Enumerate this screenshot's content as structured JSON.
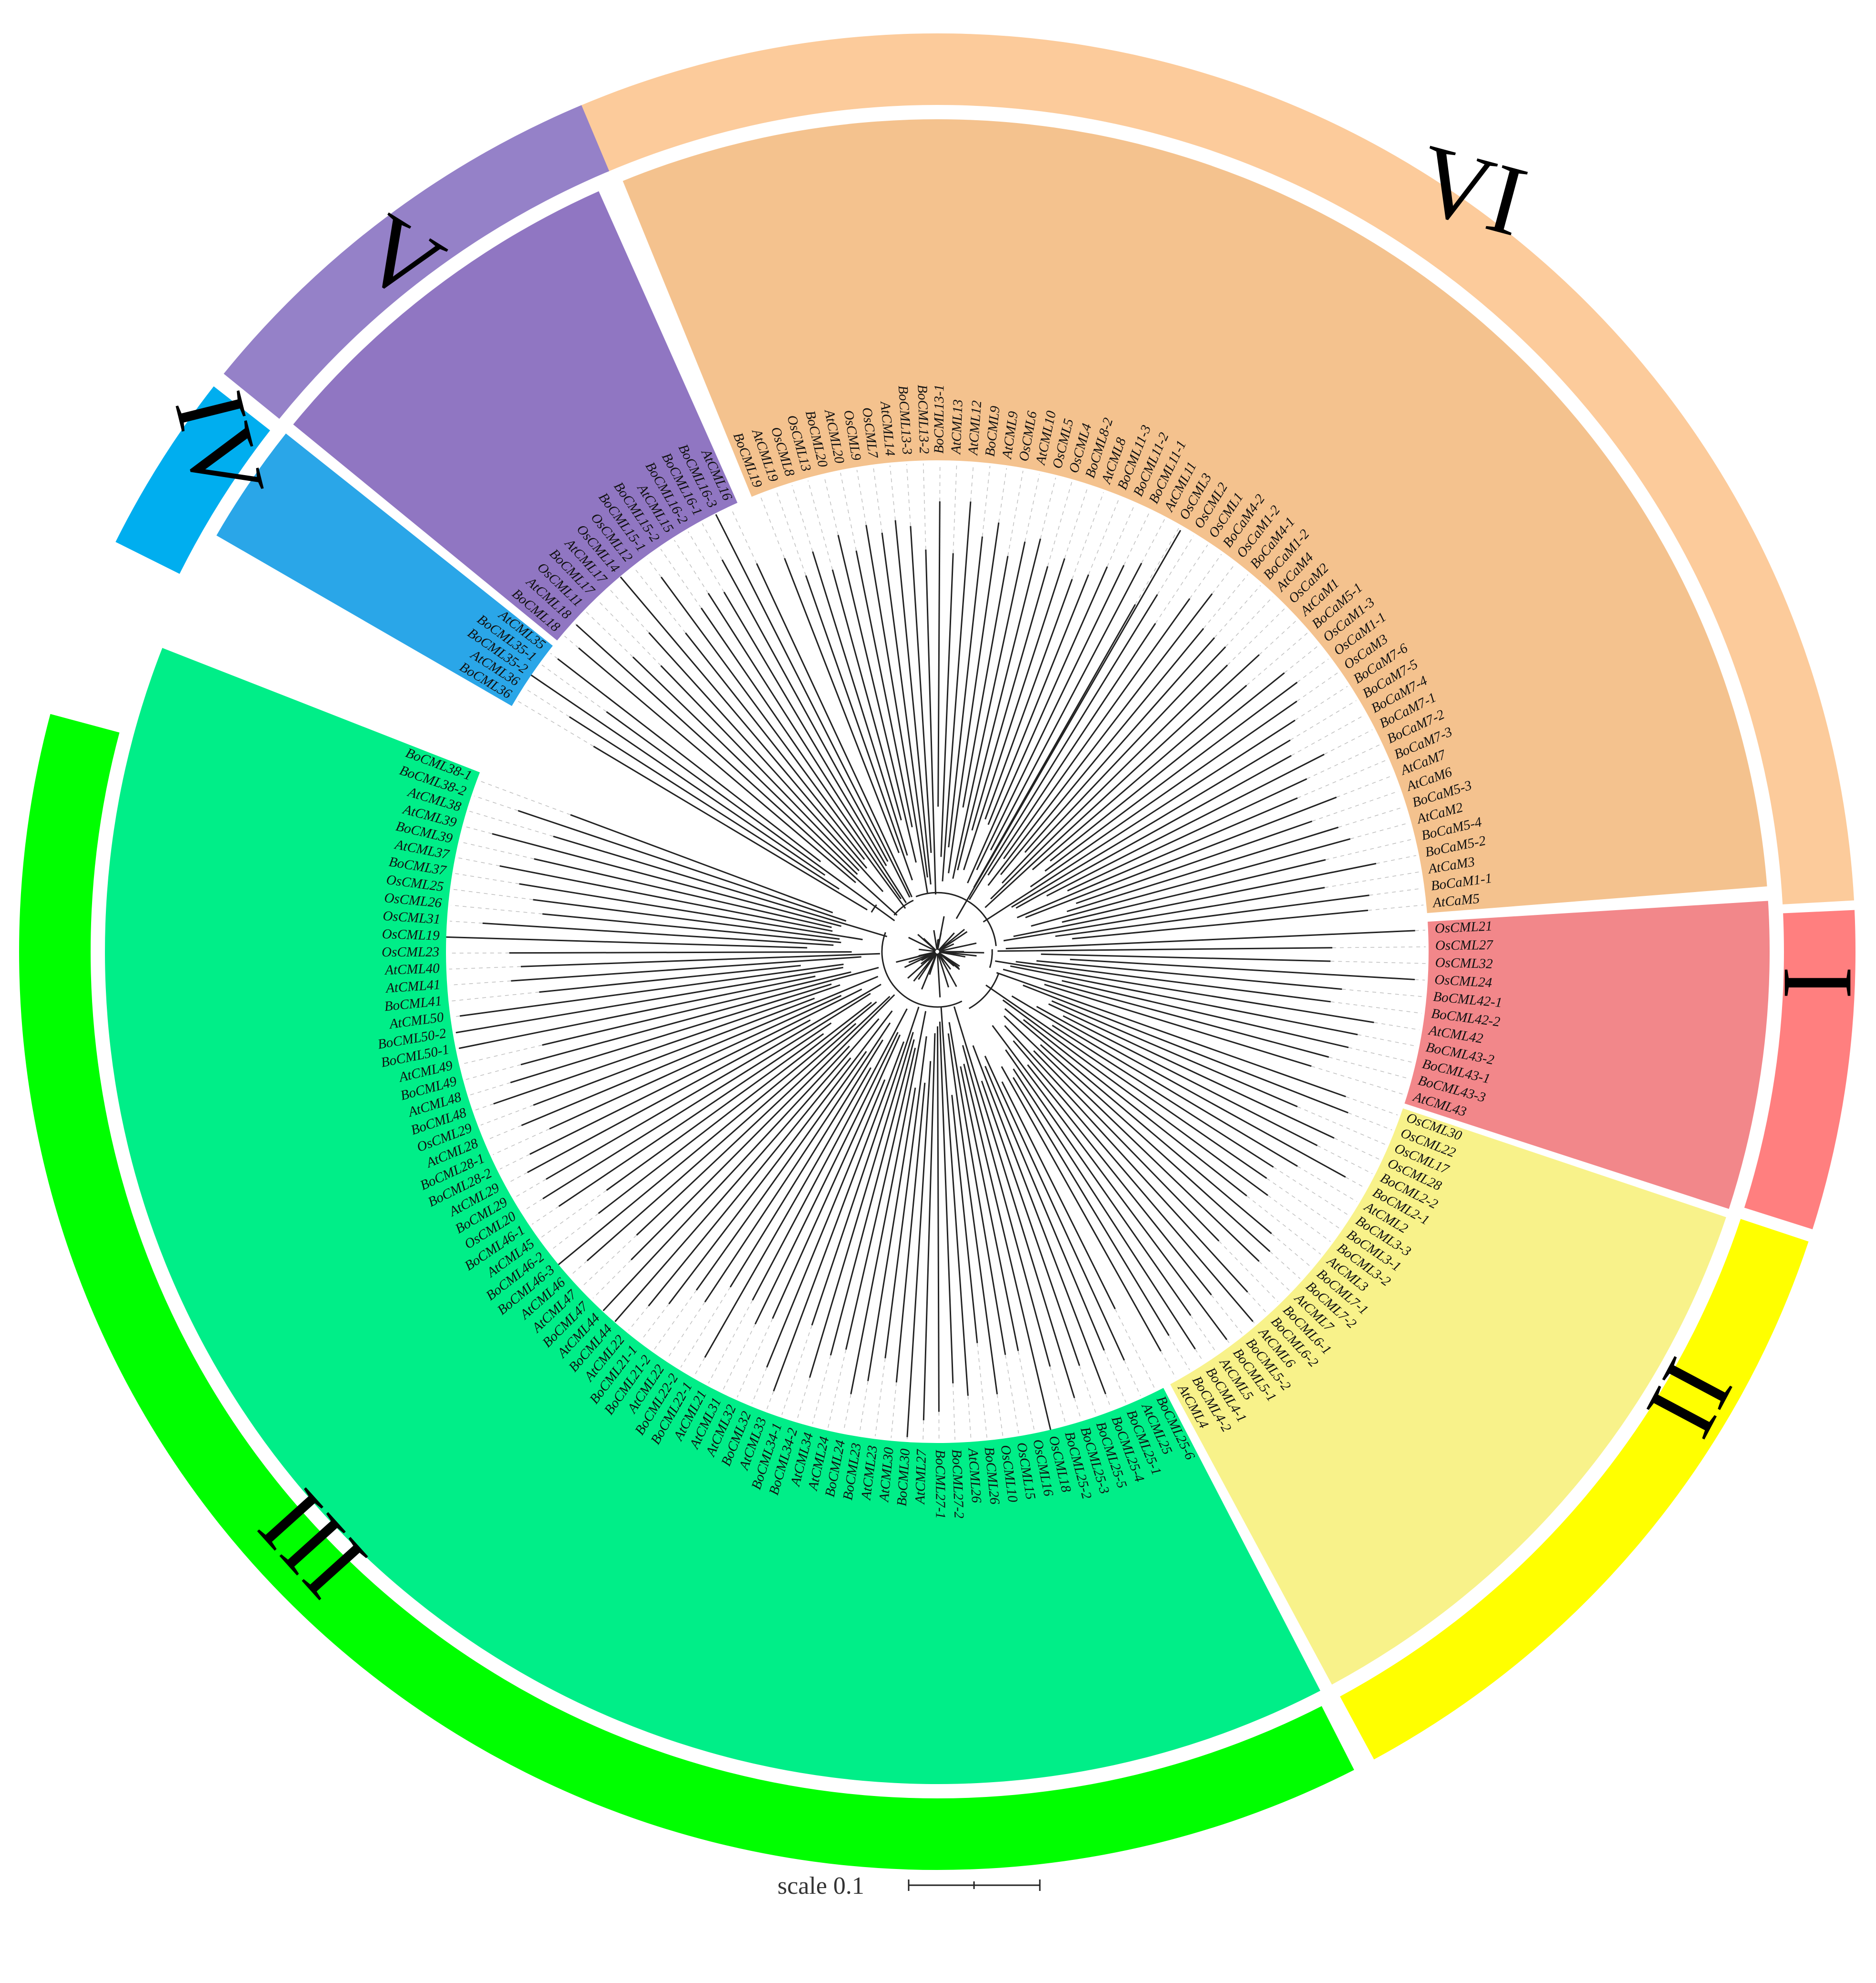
{
  "clades": [
    {
      "numeral": "VI",
      "outer_color": "#FCCB9B",
      "inner_color": "#F4C28E",
      "leaves": [
        "BoCML19",
        "AtCML19",
        "OsCML8",
        "OsCML13",
        "BoCML20",
        "AtCML20",
        "OsCML9",
        "OsCML7",
        "AtCML14",
        "BoCML13-3",
        "BoCML13-2",
        "BoCML13-1",
        "AtCML13",
        "AtCML12",
        "BoCML9",
        "AtCML9",
        "OsCML6",
        "AtCML10",
        "OsCML5",
        "OsCML4",
        "BoCML8-2",
        "AtCML8",
        "BoCML11-3",
        "BoCML11-2",
        "BoCML11-1",
        "AtCML11",
        "OsCML3",
        "OsCML2",
        "OsCML1",
        "BoCaM4-2",
        "OsCaM1-2",
        "BoCaM4-1",
        "BoCaM1-2",
        "AtCaM4",
        "OsCaM2",
        "AtCaM1",
        "BoCaM5-1",
        "OsCaM1-3",
        "OsCaM1-1",
        "OsCaM3",
        "BoCaM7-6",
        "BoCaM7-5",
        "BoCaM7-4",
        "BoCaM7-1",
        "BoCaM7-2",
        "BoCaM7-3",
        "AtCaM7",
        "AtCaM6",
        "BoCaM5-3",
        "AtCaM2",
        "BoCaM5-4",
        "BoCaM5-2",
        "AtCaM3",
        "BoCaM1-1",
        "AtCaM5"
      ]
    },
    {
      "numeral": "I",
      "outer_color": "#FF7F7F",
      "inner_color": "#F2878A",
      "leaves": [
        "OsCML21",
        "OsCML27",
        "OsCML32",
        "OsCML24",
        "BoCML42-1",
        "BoCML42-2",
        "AtCML42",
        "BoCML43-2",
        "BoCML43-1",
        "BoCML43-3",
        "AtCML43"
      ]
    },
    {
      "numeral": "II",
      "outer_color": "#FFFF00",
      "inner_color": "#F8F28A",
      "leaves": [
        "OsCML30",
        "OsCML22",
        "OsCML17",
        "OsCML28",
        "BoCML2-2",
        "BoCML2-1",
        "AtCML2",
        "BoCML3-3",
        "BoCML3-1",
        "BoCML3-2",
        "AtCML3",
        "BoCML7-1",
        "BoCML7-2",
        "AtCML7",
        "BoCML6-1",
        "BoCML6-2",
        "AtCML6",
        "BoCML5-2",
        "BoCML5-1",
        "AtCML5",
        "BoCML4-1",
        "BoCML4-2",
        "AtCML4"
      ]
    },
    {
      "numeral": "III",
      "outer_color": "#00FF00",
      "inner_color": "#00EE88",
      "leaves": [
        "BoCML25-6",
        "AtCML25",
        "BoCML25-1",
        "BoCML25-4",
        "BoCML25-5",
        "BoCML25-3",
        "BoCML25-2",
        "OsCML18",
        "OsCML16",
        "OsCML15",
        "OsCML10",
        "BoCML26",
        "AtCML26",
        "BoCML27-2",
        "BoCML27-1",
        "AtCML27",
        "BoCML30",
        "AtCML30",
        "AtCML23",
        "BoCML23",
        "BoCML24",
        "AtCML24",
        "AtCML34",
        "BoCML34-2",
        "BoCML34-1",
        "AtCML33",
        "BoCML32",
        "AtCML32",
        "AtCML31",
        "AtCML21",
        "BoCML22-1",
        "BoCML22-2",
        "AtCML22",
        "BoCML21-2",
        "BoCML21-1",
        "AtCML22",
        "BoCML44",
        "AtCML44",
        "BoCML47",
        "AtCML47",
        "AtCML46",
        "BoCML46-3",
        "BoCML46-2",
        "AtCML45",
        "BoCML46-1",
        "OsCML20",
        "BoCML29",
        "AtCML29",
        "BoCML28-2",
        "BoCML28-1",
        "AtCML28",
        "OsCML29",
        "BoCML48",
        "AtCML48",
        "BoCML49",
        "AtCML49",
        "BoCML50-1",
        "BoCML50-2",
        "AtCML50",
        "BoCML41",
        "AtCML41",
        "AtCML40",
        "OsCML23",
        "OsCML19",
        "OsCML31",
        "OsCML26",
        "OsCML25",
        "BoCML37",
        "AtCML37",
        "BoCML39",
        "AtCML39",
        "AtCML38",
        "BoCML38-2",
        "BoCML38-1"
      ]
    },
    {
      "numeral": "IV",
      "outer_color": "#00AEEF",
      "inner_color": "#2AA6E8",
      "leaves": [
        "BoCML36",
        "AtCML36",
        "BoCML35-2",
        "BoCML35-1",
        "AtCML35"
      ]
    },
    {
      "numeral": "V",
      "outer_color": "#9581C8",
      "inner_color": "#9076C2",
      "leaves": [
        "BoCML18",
        "AtCML18",
        "OsCML11",
        "BoCML17",
        "AtCML17",
        "OsCML14",
        "OsCML12",
        "BoCML15-1",
        "BoCML15-2",
        "AtCML15",
        "BoCML16-2",
        "BoCML16-1",
        "BoCML16-3",
        "AtCML16"
      ]
    }
  ],
  "scale_bar": {
    "label": "scale 0.1"
  }
}
